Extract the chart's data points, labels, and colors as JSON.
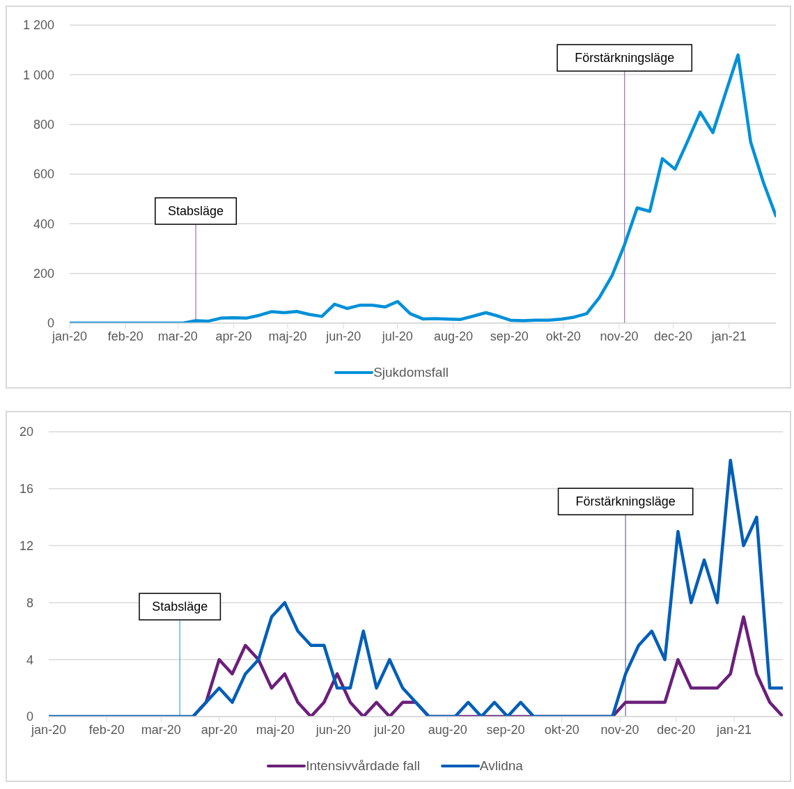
{
  "chart_data": [
    {
      "type": "line",
      "x": [
        "2020-01-01",
        "2020-01-08",
        "2020-01-15",
        "2020-01-22",
        "2020-01-29",
        "2020-02-05",
        "2020-02-12",
        "2020-02-19",
        "2020-02-26",
        "2020-03-04",
        "2020-03-11",
        "2020-03-18",
        "2020-03-25",
        "2020-04-01",
        "2020-04-08",
        "2020-04-15",
        "2020-04-22",
        "2020-04-29",
        "2020-05-06",
        "2020-05-13",
        "2020-05-20",
        "2020-05-27",
        "2020-06-03",
        "2020-06-10",
        "2020-06-17",
        "2020-06-24",
        "2020-07-01",
        "2020-07-08",
        "2020-07-15",
        "2020-07-22",
        "2020-07-29",
        "2020-08-05",
        "2020-08-12",
        "2020-08-19",
        "2020-08-26",
        "2020-09-02",
        "2020-09-09",
        "2020-09-16",
        "2020-09-23",
        "2020-09-30",
        "2020-10-07",
        "2020-10-14",
        "2020-10-21",
        "2020-10-28",
        "2020-11-04",
        "2020-11-11",
        "2020-11-18",
        "2020-11-25",
        "2020-12-02",
        "2020-12-09",
        "2020-12-16",
        "2020-12-23",
        "2020-12-30",
        "2021-01-06",
        "2021-01-13",
        "2021-01-20",
        "2021-01-27"
      ],
      "series": [
        {
          "name": "Sjukdomsfall",
          "color": "#0090d8",
          "values": [
            0,
            0,
            0,
            0,
            0,
            0,
            0,
            0,
            0,
            0,
            10,
            8,
            20,
            22,
            20,
            31,
            46,
            42,
            47,
            35,
            27,
            76,
            59,
            72,
            72,
            65,
            87,
            38,
            17,
            18,
            16,
            15,
            28,
            42,
            28,
            11,
            10,
            12,
            12,
            16,
            24,
            38,
            103,
            190,
            316,
            464,
            450,
            662,
            620,
            732,
            849,
            767,
            925,
            1080,
            729,
            568,
            432
          ]
        }
      ],
      "xlim": [
        "2020-01-01",
        "2021-01-27"
      ],
      "xticks": [
        {
          "value": "2020-01-01",
          "label": "jan-20"
        },
        {
          "value": "2020-02-01",
          "label": "feb-20"
        },
        {
          "value": "2020-03-01",
          "label": "mar-20"
        },
        {
          "value": "2020-04-01",
          "label": "apr-20"
        },
        {
          "value": "2020-05-01",
          "label": "maj-20"
        },
        {
          "value": "2020-06-01",
          "label": "jun-20"
        },
        {
          "value": "2020-07-01",
          "label": "jul-20"
        },
        {
          "value": "2020-08-01",
          "label": "aug-20"
        },
        {
          "value": "2020-09-01",
          "label": "sep-20"
        },
        {
          "value": "2020-10-01",
          "label": "okt-20"
        },
        {
          "value": "2020-11-01",
          "label": "nov-20"
        },
        {
          "value": "2020-12-01",
          "label": "dec-20"
        },
        {
          "value": "2021-01-01",
          "label": "jan-21"
        }
      ],
      "ylim": [
        0,
        1200
      ],
      "yticks": [
        0,
        200,
        400,
        600,
        800,
        {
          "value": 1000,
          "label": "1 000"
        },
        {
          "value": 1200,
          "label": "1 200"
        }
      ],
      "grid": "y",
      "legend": "bottom",
      "ref_lines": [
        {
          "axis": "x",
          "value": "2020-03-11",
          "label": "Stabsläge",
          "color": "#9b6ba8"
        },
        {
          "axis": "x",
          "value": "2020-11-04",
          "label": "Förstärkningsläge",
          "color": "#9b6ba8"
        }
      ]
    },
    {
      "type": "line",
      "x": [
        "2020-01-01",
        "2020-01-08",
        "2020-01-15",
        "2020-01-22",
        "2020-01-29",
        "2020-02-05",
        "2020-02-12",
        "2020-02-19",
        "2020-02-26",
        "2020-03-04",
        "2020-03-11",
        "2020-03-18",
        "2020-03-25",
        "2020-04-01",
        "2020-04-08",
        "2020-04-15",
        "2020-04-22",
        "2020-04-29",
        "2020-05-06",
        "2020-05-13",
        "2020-05-20",
        "2020-05-27",
        "2020-06-03",
        "2020-06-10",
        "2020-06-17",
        "2020-06-24",
        "2020-07-01",
        "2020-07-08",
        "2020-07-15",
        "2020-07-22",
        "2020-07-29",
        "2020-08-05",
        "2020-08-12",
        "2020-08-19",
        "2020-08-26",
        "2020-09-02",
        "2020-09-09",
        "2020-09-16",
        "2020-09-23",
        "2020-09-30",
        "2020-10-07",
        "2020-10-14",
        "2020-10-21",
        "2020-10-28",
        "2020-11-04",
        "2020-11-11",
        "2020-11-18",
        "2020-11-25",
        "2020-12-02",
        "2020-12-09",
        "2020-12-16",
        "2020-12-23",
        "2020-12-30",
        "2021-01-06",
        "2021-01-13",
        "2021-01-20",
        "2021-01-27"
      ],
      "series": [
        {
          "name": "Intensivvårdade fall",
          "color": "#6b1f7a",
          "values": [
            null,
            null,
            null,
            null,
            null,
            null,
            null,
            null,
            null,
            null,
            null,
            0,
            1,
            4,
            3,
            5,
            4,
            2,
            3,
            1,
            0,
            1,
            3,
            1,
            0,
            1,
            0,
            1,
            1,
            0,
            0,
            0,
            0,
            0,
            0,
            0,
            0,
            0,
            0,
            0,
            0,
            0,
            0,
            0,
            1,
            1,
            1,
            1,
            4,
            2,
            2,
            2,
            3,
            7,
            3,
            1,
            0
          ]
        },
        {
          "name": "Avlidna",
          "color": "#005eb8",
          "values": [
            0,
            0,
            0,
            0,
            0,
            0,
            0,
            0,
            0,
            0,
            0,
            0,
            1,
            2,
            1,
            3,
            4,
            7,
            8,
            6,
            5,
            5,
            2,
            2,
            6,
            2,
            4,
            2,
            1,
            0,
            0,
            0,
            1,
            0,
            1,
            0,
            1,
            0,
            0,
            0,
            0,
            0,
            0,
            0,
            3,
            5,
            6,
            4,
            13,
            8,
            11,
            8,
            18,
            12,
            14,
            2,
            2
          ]
        }
      ],
      "xlim": [
        "2020-01-01",
        "2021-01-27"
      ],
      "xticks": [
        {
          "value": "2020-01-01",
          "label": "jan-20"
        },
        {
          "value": "2020-02-01",
          "label": "feb-20"
        },
        {
          "value": "2020-03-01",
          "label": "mar-20"
        },
        {
          "value": "2020-04-01",
          "label": "apr-20"
        },
        {
          "value": "2020-05-01",
          "label": "maj-20"
        },
        {
          "value": "2020-06-01",
          "label": "jun-20"
        },
        {
          "value": "2020-07-01",
          "label": "jul-20"
        },
        {
          "value": "2020-08-01",
          "label": "aug-20"
        },
        {
          "value": "2020-09-01",
          "label": "sep-20"
        },
        {
          "value": "2020-10-01",
          "label": "okt-20"
        },
        {
          "value": "2020-11-01",
          "label": "nov-20"
        },
        {
          "value": "2020-12-01",
          "label": "dec-20"
        },
        {
          "value": "2021-01-01",
          "label": "jan-21"
        }
      ],
      "ylim": [
        0,
        20
      ],
      "yticks": [
        0,
        4,
        8,
        12,
        16,
        20
      ],
      "grid": "y",
      "legend": "bottom",
      "ref_lines": [
        {
          "axis": "x",
          "value": "2020-03-11",
          "label": "Stabsläge",
          "color": "#2fa8e0"
        },
        {
          "axis": "x",
          "value": "2020-11-04",
          "label": "Förstärkningsläge",
          "color": "#6a6a8a"
        }
      ]
    }
  ]
}
